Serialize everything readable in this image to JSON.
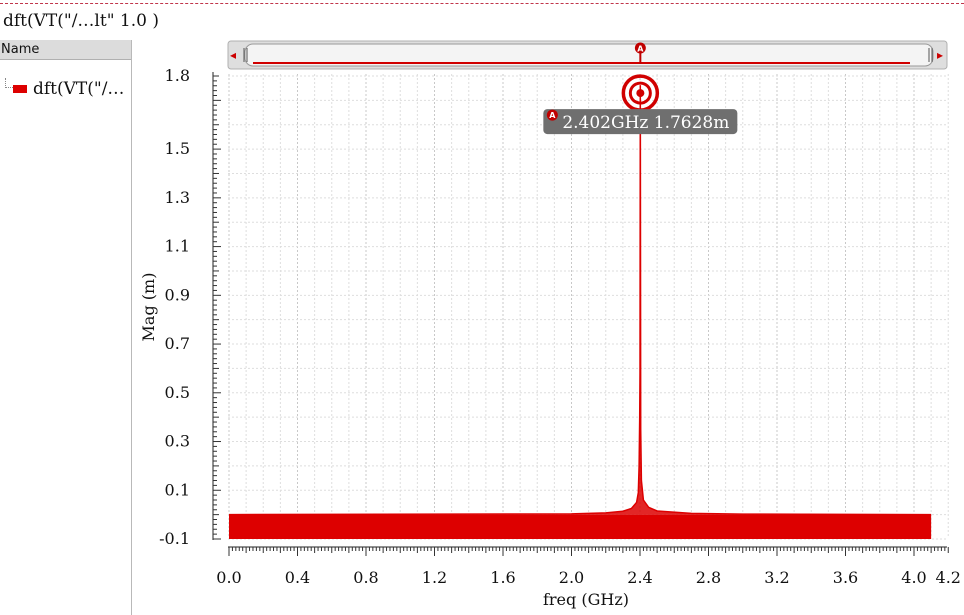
{
  "window": {
    "title": "dft(VT(\"/…lt\" 1.0 )"
  },
  "legend_panel": {
    "header": "Name",
    "items": [
      {
        "label": "dft(VT(\"/…",
        "color": "#dd0000"
      }
    ]
  },
  "scrollbar": {
    "marker_letter": "A",
    "left_arrow": "◂",
    "right_arrow": "▸"
  },
  "marker": {
    "letter": "A",
    "readout": "2.402GHz 1.7628m",
    "x": 2.402,
    "y": 1.7628
  },
  "chart_data": {
    "type": "line",
    "title": "",
    "xlabel": "freq (GHz)",
    "ylabel": "Mag (m)",
    "xlim": [
      0.0,
      4.2
    ],
    "ylim": [
      -0.1,
      1.8
    ],
    "x_ticks": [
      "0.0",
      "0.4",
      "0.8",
      "1.2",
      "1.6",
      "2.0",
      "2.4",
      "2.8",
      "3.2",
      "3.6",
      "4.0",
      "4.2"
    ],
    "y_ticks": [
      "1.8",
      "1.5",
      "1.3",
      "1.1",
      "0.9",
      "0.7",
      "0.5",
      "0.3",
      "0.1",
      "-0.1"
    ],
    "grid": true,
    "series": [
      {
        "color": "#dd0000",
        "noise_band": [
          -0.1,
          0.0
        ],
        "x_range": [
          0.0,
          4.1
        ],
        "points": [
          [
            0.0,
            0.0
          ],
          [
            2.0,
            0.003
          ],
          [
            2.2,
            0.007
          ],
          [
            2.3,
            0.014
          ],
          [
            2.35,
            0.025
          ],
          [
            2.38,
            0.05
          ],
          [
            2.39,
            0.09
          ],
          [
            2.395,
            0.2
          ],
          [
            2.398,
            0.4
          ],
          [
            2.4,
            0.58
          ],
          [
            2.402,
            1.7628
          ],
          [
            2.404,
            0.35
          ],
          [
            2.408,
            0.14
          ],
          [
            2.42,
            0.06
          ],
          [
            2.45,
            0.03
          ],
          [
            2.5,
            0.015
          ],
          [
            2.7,
            0.005
          ],
          [
            3.0,
            0.002
          ],
          [
            4.1,
            0.0
          ]
        ]
      }
    ]
  }
}
